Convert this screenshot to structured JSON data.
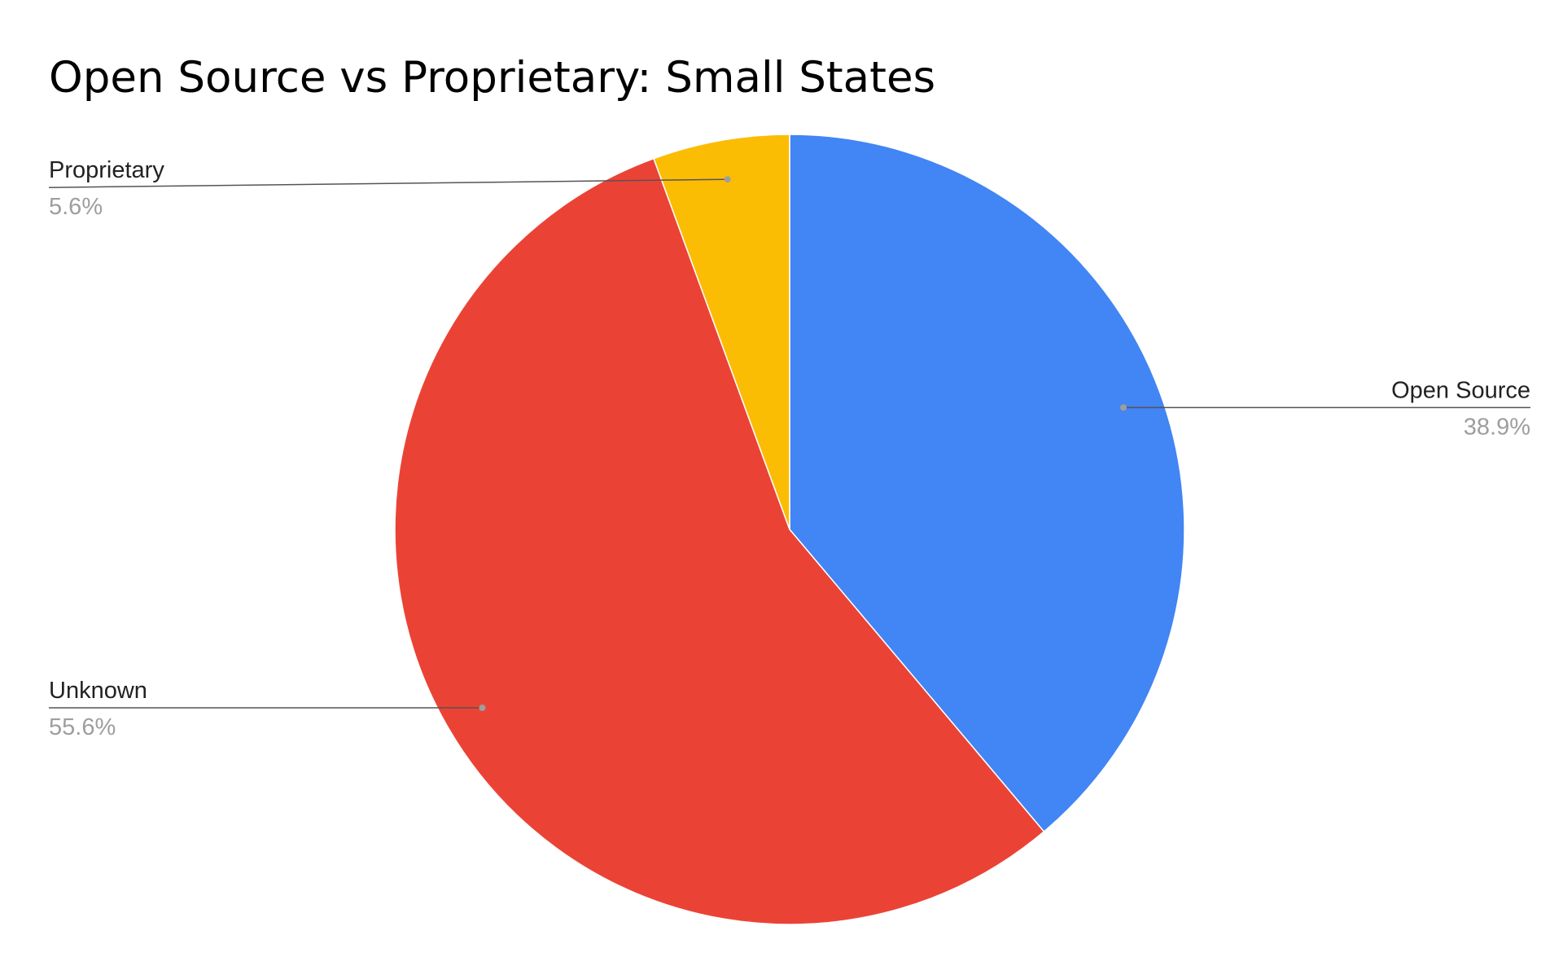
{
  "chart_data": {
    "type": "pie",
    "title": "Open Source vs Proprietary: Small States",
    "slices": [
      {
        "label": "Open Source",
        "value": 38.9,
        "display": "38.9%",
        "color": "#4285F4"
      },
      {
        "label": "Unknown",
        "value": 55.6,
        "display": "55.6%",
        "color": "#EA4335"
      },
      {
        "label": "Proprietary",
        "value": 5.6,
        "display": "5.6%",
        "color": "#FBBC04"
      }
    ],
    "start_angle": "12 o'clock",
    "direction": "clockwise",
    "legend": "none",
    "label_style": "leader lines with category name and percentage"
  }
}
